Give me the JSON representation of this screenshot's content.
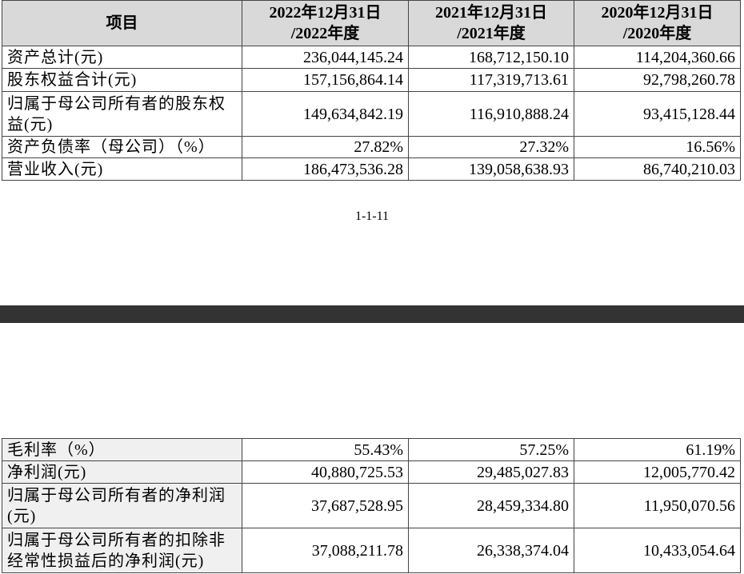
{
  "top_table": {
    "header": [
      [
        "项目"
      ],
      [
        "2022年12月31日",
        "/2022年度"
      ],
      [
        "2021年12月31日",
        "/2021年度"
      ],
      [
        "2020年12月31日",
        "/2020年度"
      ]
    ],
    "rows": [
      [
        "资产总计(元)",
        "236,044,145.24",
        "168,712,150.10",
        "114,204,360.66"
      ],
      [
        "股东权益合计(元)",
        "157,156,864.14",
        "117,319,713.61",
        "92,798,260.78"
      ],
      [
        "归属于母公司所有者的股东权益(元)",
        "149,634,842.19",
        "116,910,888.24",
        "93,415,128.44"
      ],
      [
        "资产负债率（母公司）（%）",
        "27.82%",
        "27.32%",
        "16.56%"
      ],
      [
        "营业收入(元)",
        "186,473,536.28",
        "139,058,638.93",
        "86,740,210.03"
      ]
    ]
  },
  "page_number": "1-1-11",
  "bottom_table": {
    "rows": [
      [
        "毛利率（%）",
        "55.43%",
        "57.25%",
        "61.19%"
      ],
      [
        "净利润(元)",
        "40,880,725.53",
        "29,485,027.83",
        "12,005,770.42"
      ],
      [
        "归属于母公司所有者的净利润(元)",
        "37,687,528.95",
        "28,459,334.80",
        "11,950,070.56"
      ],
      [
        "归属于母公司所有者的扣除非经常性损益后的净利润(元)",
        "37,088,211.78",
        "26,338,374.04",
        "10,433,054.64"
      ]
    ]
  }
}
